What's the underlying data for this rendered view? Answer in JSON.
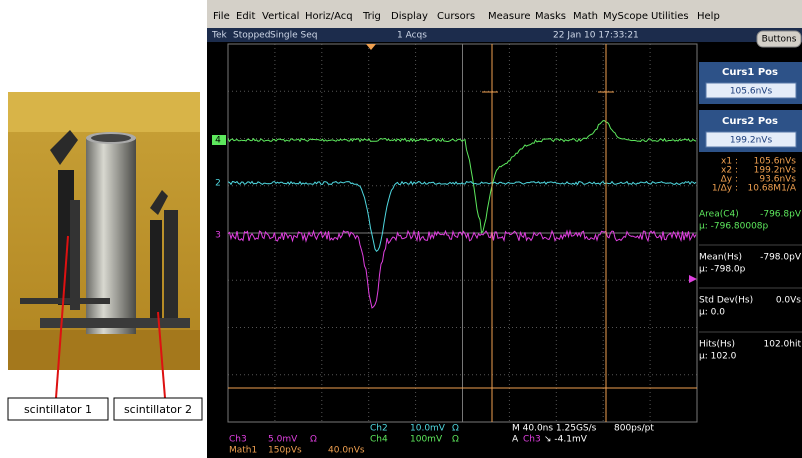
{
  "photo": {
    "labels": [
      "scintillator 1",
      "scintillator 2"
    ]
  },
  "menu": [
    "File",
    "Edit",
    "Vertical",
    "Horiz/Acq",
    "Trig",
    "Display",
    "Cursors",
    "Measure",
    "Masks",
    "Math",
    "MyScope",
    "Utilities",
    "Help"
  ],
  "status": {
    "brand": "Tek",
    "state": "Stopped",
    "mode": "Single Seq",
    "acqs": "1 Acqs",
    "datetime": "22 Jan 10 17:33:21"
  },
  "buttons": "Buttons",
  "cursors": [
    {
      "title": "Curs1 Pos",
      "value": "105.6nVs"
    },
    {
      "title": "Curs2 Pos",
      "value": "199.2nVs"
    }
  ],
  "readouts": [
    {
      "label": "x1 :",
      "value": "105.6nVs"
    },
    {
      "label": "x2 :",
      "value": "199.2nVs"
    },
    {
      "label": "Δy :",
      "value": "93.6nVs"
    },
    {
      "label": "1/Δy :",
      "value": "10.68M1/A"
    }
  ],
  "measurements": [
    {
      "label": "Area(C4)",
      "value": "-796.8pV",
      "stat": "μ: -796.80008p"
    },
    {
      "label": "Mean(Hs)",
      "value": "-798.0pV",
      "stat": "μ: -798.0p"
    },
    {
      "label": "Std Dev(Hs)",
      "value": "0.0Vs",
      "stat": "μ: 0.0"
    },
    {
      "label": "Hits(Hs)",
      "value": "102.0hit",
      "stat": "μ: 102.0"
    }
  ],
  "channel_markers": [
    "4",
    "2",
    "3"
  ],
  "bottom": {
    "ch2": "Ch2",
    "ch2_scale": "10.0mV",
    "ch2_term": "Ω",
    "ch4": "Ch4",
    "ch4_scale": "100mV",
    "ch4_term": "Ω",
    "timebase": "M 40.0ns 1.25GS/s",
    "resolution": "800ps/pt",
    "trigger_prefix": "A",
    "trigger_source": "Ch3",
    "trigger_level": "↘ -4.1mV",
    "ch3": "Ch3",
    "ch3_scale": "5.0mV",
    "ch3_term": "Ω",
    "math1": "Math1",
    "math1_scale": "150pVs",
    "math1_pos": "40.0nVs"
  }
}
